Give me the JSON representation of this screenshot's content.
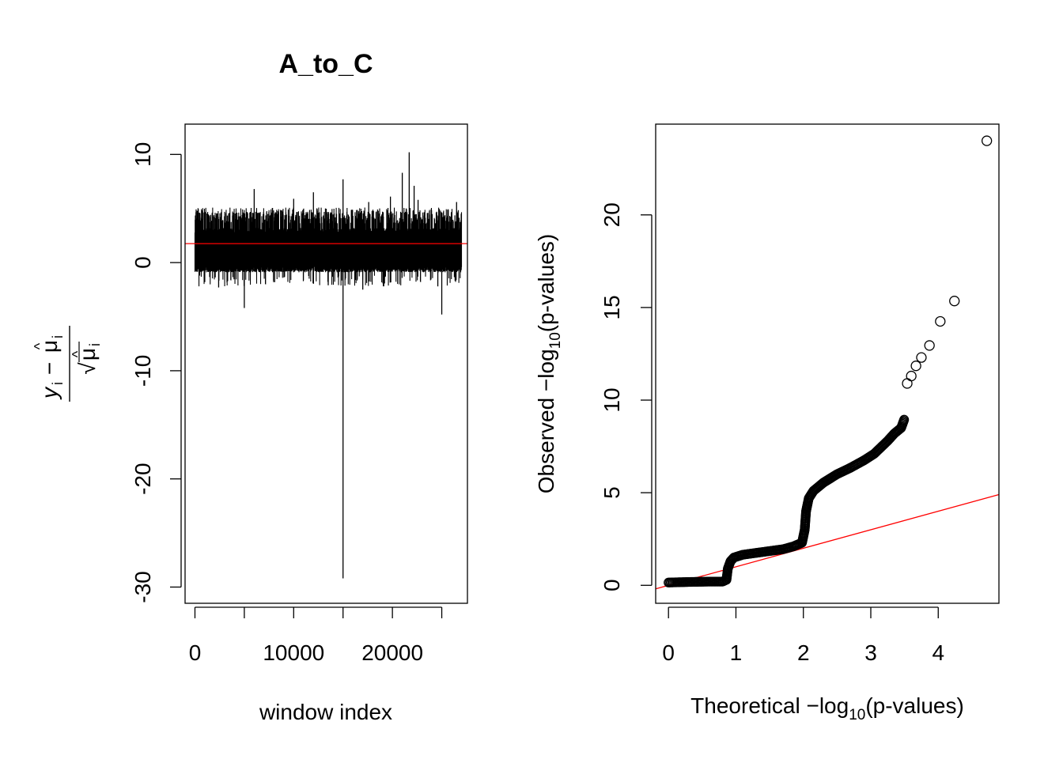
{
  "chart_data": [
    {
      "type": "line",
      "title": "A_to_C",
      "xlabel": "window index",
      "ylabel": "(y_i − μ̂_i) / √μ̂_i",
      "ylabel_parts": {
        "y": "y",
        "i": "i",
        "minus": " − ",
        "mu": "μ",
        "hat": "^",
        "sqrt": "√"
      },
      "xlim": [
        -1000,
        27600
      ],
      "ylim": [
        -31.5,
        12.8
      ],
      "x_ticks": [
        0,
        10000,
        20000
      ],
      "x_tick_labels": [
        "0",
        "10000",
        "20000"
      ],
      "y_ticks": [
        10,
        0,
        -10,
        -20,
        -30
      ],
      "y_tick_labels": [
        "10",
        "0",
        "-10",
        "-20",
        "-30"
      ],
      "n_windows": 27000,
      "typical_range": [
        -0.6,
        5.0
      ],
      "spikes": [
        {
          "x": 15000,
          "y": -29.2
        },
        {
          "x": 15000,
          "y": 7.7
        },
        {
          "x": 21700,
          "y": 10.2
        },
        {
          "x": 5000,
          "y": -4.2
        },
        {
          "x": 25000,
          "y": -4.8
        },
        {
          "x": 6000,
          "y": 6.8
        },
        {
          "x": 12000,
          "y": 6.5
        },
        {
          "x": 21000,
          "y": 8.3
        },
        {
          "x": 22200,
          "y": 7.1
        },
        {
          "x": 10000,
          "y": 5.9
        },
        {
          "x": 17600,
          "y": 5.6
        },
        {
          "x": 19800,
          "y": 6.1
        },
        {
          "x": 22600,
          "y": 5.8
        },
        {
          "x": 26500,
          "y": 5.6
        },
        {
          "x": 2400,
          "y": -2.3
        },
        {
          "x": 13500,
          "y": -2.1
        },
        {
          "x": 17000,
          "y": -2.5
        },
        {
          "x": 24600,
          "y": -2.2
        }
      ],
      "reference_line": {
        "y": 1.75,
        "color": "#ff0000"
      }
    },
    {
      "type": "scatter",
      "xlabel": "Theoretical −log10(p-values)",
      "ylabel": "Observed −log10(p-values)",
      "xlabel_parts": {
        "pre": "Theoretical −log",
        "sub": "10",
        "post": "(p-values)"
      },
      "ylabel_parts": {
        "pre": "Observed −log",
        "sub": "10",
        "post": "(p-values)"
      },
      "xlim": [
        -0.19,
        4.9
      ],
      "ylim": [
        -0.97,
        24.9
      ],
      "x_ticks": [
        0,
        1,
        2,
        3,
        4
      ],
      "x_tick_labels": [
        "0",
        "1",
        "2",
        "3",
        "4"
      ],
      "y_ticks": [
        0,
        5,
        10,
        15,
        20
      ],
      "y_tick_labels": [
        "0",
        "5",
        "10",
        "15",
        "20"
      ],
      "curve": [
        [
          0.0,
          0.15
        ],
        [
          0.3,
          0.18
        ],
        [
          0.6,
          0.2
        ],
        [
          0.8,
          0.2
        ],
        [
          0.86,
          0.3
        ],
        [
          0.88,
          0.9
        ],
        [
          0.92,
          1.3
        ],
        [
          0.97,
          1.5
        ],
        [
          1.1,
          1.65
        ],
        [
          1.3,
          1.75
        ],
        [
          1.5,
          1.85
        ],
        [
          1.7,
          1.95
        ],
        [
          1.85,
          2.1
        ],
        [
          1.98,
          2.3
        ],
        [
          2.02,
          3.0
        ],
        [
          2.04,
          4.0
        ],
        [
          2.08,
          4.7
        ],
        [
          2.15,
          5.1
        ],
        [
          2.3,
          5.55
        ],
        [
          2.5,
          6.0
        ],
        [
          2.7,
          6.35
        ],
        [
          2.9,
          6.75
        ],
        [
          3.05,
          7.1
        ],
        [
          3.15,
          7.45
        ],
        [
          3.25,
          7.8
        ],
        [
          3.35,
          8.2
        ],
        [
          3.45,
          8.5
        ],
        [
          3.5,
          9.0
        ]
      ],
      "outliers": [
        [
          3.54,
          10.9
        ],
        [
          3.6,
          11.3
        ],
        [
          3.67,
          11.85
        ],
        [
          3.75,
          12.3
        ],
        [
          3.87,
          12.95
        ],
        [
          4.03,
          14.25
        ],
        [
          4.24,
          15.35
        ],
        [
          4.72,
          24.0
        ]
      ],
      "marker": "open-circle",
      "reference_line": {
        "x": [
          -0.19,
          4.9
        ],
        "y": [
          -0.19,
          4.9
        ],
        "color": "#ff0000"
      }
    }
  ]
}
